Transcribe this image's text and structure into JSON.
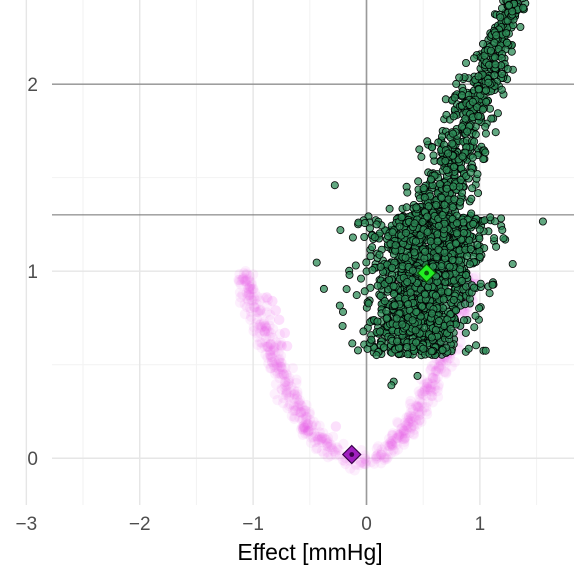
{
  "chart_data": {
    "type": "scatter",
    "title": "",
    "xlabel": "Effect [mmHg]",
    "ylabel": "",
    "xlim": [
      -3.1,
      1.83
    ],
    "ylim": [
      -0.25,
      2.45
    ],
    "x_ticks": [
      -3,
      -2,
      -1,
      0,
      1
    ],
    "x_tick_labels": [
      "−3",
      "−2",
      "−1",
      "0",
      "1"
    ],
    "y_ticks": [
      0,
      1,
      2
    ],
    "y_tick_labels": [
      "0",
      "1",
      "2"
    ],
    "grid": true,
    "reference_lines": {
      "vertical_x": 0,
      "horizontal_y": [
        1.301,
        2.0
      ]
    },
    "series": [
      {
        "color": "#ee55ee",
        "summary_point": {
          "x": -0.13,
          "y": 0.02,
          "color": "#a020c0"
        },
        "outliers": [
          {
            "x": -0.88,
            "y": 0.86
          },
          {
            "x": -0.83,
            "y": 0.84
          },
          {
            "x": -0.8,
            "y": 0.79
          },
          {
            "x": -0.77,
            "y": 0.74
          },
          {
            "x": -0.72,
            "y": 0.67
          },
          {
            "x": -0.7,
            "y": 0.6
          },
          {
            "x": -0.27,
            "y": 0.17
          }
        ]
      },
      {
        "color": "#2e8b57",
        "summary_point": {
          "x": 0.53,
          "y": 0.99,
          "color": "#22ee22"
        },
        "outliers": [
          {
            "x": -0.28,
            "y": 1.46
          },
          {
            "x": 0.72,
            "y": 1.63
          },
          {
            "x": 1.38,
            "y": 2.46
          },
          {
            "x": 0.24,
            "y": 0.41
          },
          {
            "x": 0.22,
            "y": 0.39
          },
          {
            "x": 0.45,
            "y": 0.44
          },
          {
            "x": 0.03,
            "y": 1.23
          },
          {
            "x": -0.23,
            "y": 1.22
          },
          {
            "x": -0.12,
            "y": 1.18
          },
          {
            "x": 0.09,
            "y": 1.25
          },
          {
            "x": -0.15,
            "y": 0.98
          }
        ]
      }
    ]
  }
}
